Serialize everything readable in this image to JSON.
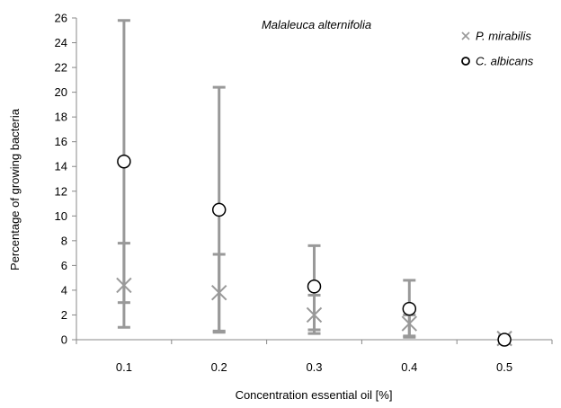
{
  "chart_data": {
    "type": "scatter",
    "title": "Malaleuca alternifolia",
    "xlabel": "Concentration essential oil [%]",
    "ylabel": "Percentage of growing bacteria",
    "categories": [
      "0.1",
      "0.2",
      "0.3",
      "0.4",
      "0.5"
    ],
    "ylim": [
      0,
      26
    ],
    "yticks": [
      0,
      2,
      4,
      6,
      8,
      10,
      12,
      14,
      16,
      18,
      20,
      22,
      24,
      26
    ],
    "grid": false,
    "legend_position": "top-right",
    "series": [
      {
        "name": "P. mirabilis",
        "marker": "x",
        "color": "#999999",
        "values": [
          4.4,
          3.8,
          2.0,
          1.3,
          0.1
        ],
        "err_low": [
          3.0,
          0.7,
          0.8,
          0.3,
          0.0
        ],
        "err_high": [
          7.8,
          6.9,
          3.6,
          2.0,
          0.3
        ]
      },
      {
        "name": "C. albicans",
        "marker": "o",
        "color": "#000000",
        "values": [
          14.4,
          10.5,
          4.3,
          2.5,
          0.0
        ],
        "err_low": [
          1.0,
          0.6,
          0.5,
          0.2,
          0.0
        ],
        "err_high": [
          25.8,
          20.4,
          7.6,
          4.8,
          0.0
        ]
      }
    ]
  }
}
